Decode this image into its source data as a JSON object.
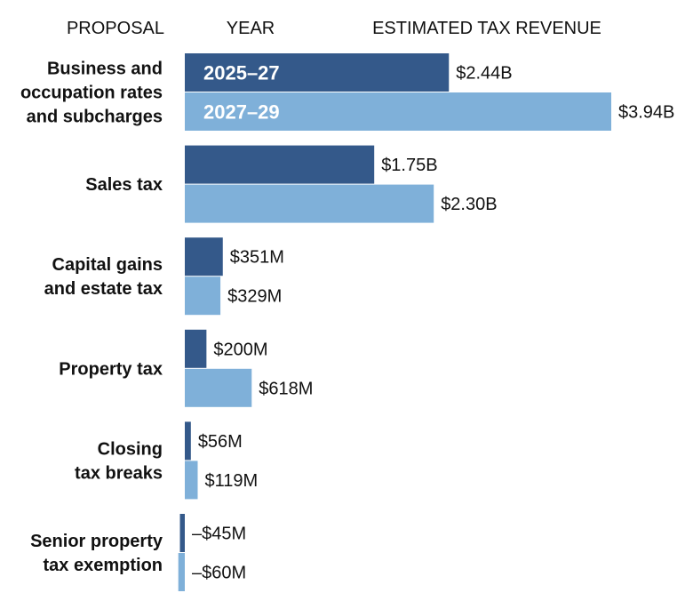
{
  "headers": {
    "proposal": "PROPOSAL",
    "year": "YEAR",
    "revenue": "ESTIMATED TAX REVENUE"
  },
  "colors": {
    "series_2025_27": "#34598a",
    "series_2027_29": "#7fb0d9",
    "text": "#111111"
  },
  "chart_data": {
    "type": "bar",
    "orientation": "horizontal",
    "title": "",
    "xlabel": "ESTIMATED TAX REVENUE",
    "ylabel": "PROPOSAL",
    "unit": "USD",
    "grid": false,
    "legend": "inside first bars",
    "categories": [
      [
        "Business and",
        "occupation rates",
        "and subcharges"
      ],
      [
        "Sales tax"
      ],
      [
        "Capital gains",
        "and estate tax"
      ],
      [
        "Property tax"
      ],
      [
        "Closing",
        "tax breaks"
      ],
      [
        "Senior property",
        "tax exemption"
      ]
    ],
    "series": [
      {
        "name": "2025–27",
        "values": [
          2440000000,
          1750000000,
          351000000,
          200000000,
          56000000,
          -45000000
        ],
        "labels": [
          "$2.44B",
          "$1.75B",
          "$351M",
          "$200M",
          "$56M",
          "–$45M"
        ]
      },
      {
        "name": "2027–29",
        "values": [
          3940000000,
          2300000000,
          329000000,
          618000000,
          119000000,
          -60000000
        ],
        "labels": [
          "$3.94B",
          "$2.30B",
          "$329M",
          "$618M",
          "$119M",
          "–$60M"
        ]
      }
    ]
  }
}
